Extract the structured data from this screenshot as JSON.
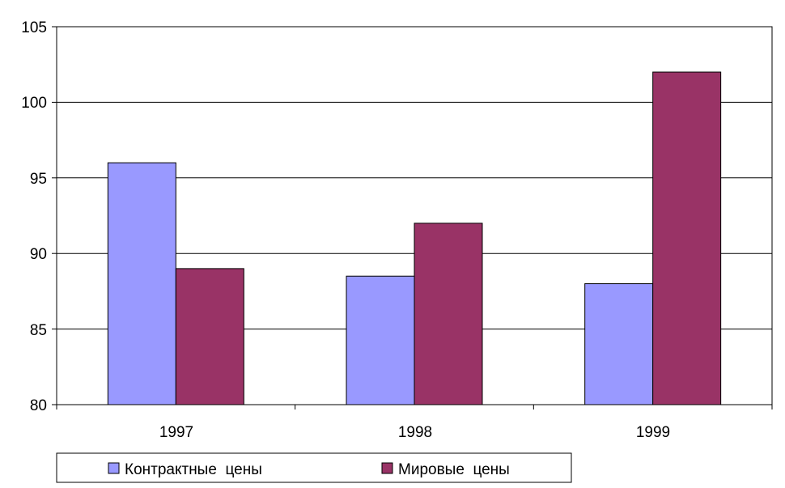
{
  "chart_data": {
    "type": "bar",
    "categories": [
      "1997",
      "1998",
      "1999"
    ],
    "series": [
      {
        "name": "Контрактные  цены",
        "values": [
          96,
          88.5,
          88
        ],
        "color": "#9999ff"
      },
      {
        "name": "Мировые  цены",
        "values": [
          89,
          92,
          102
        ],
        "color": "#993366"
      }
    ],
    "ylim": [
      80,
      105
    ],
    "yticks": [
      "80",
      "85",
      "90",
      "95",
      "100",
      "105"
    ],
    "grid": true,
    "legend_position": "bottom"
  }
}
